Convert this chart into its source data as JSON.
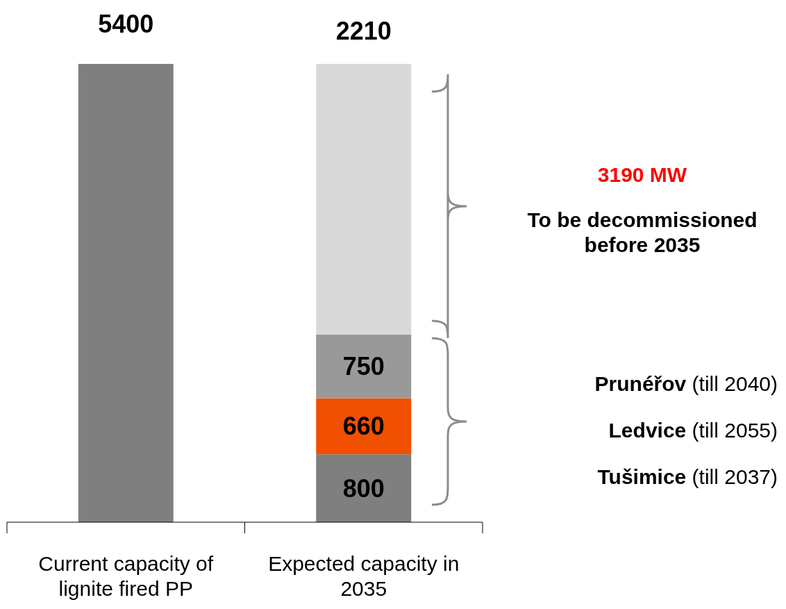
{
  "chart_data": {
    "type": "bar",
    "stacked": true,
    "categories": [
      "Current capacity of lignite fired PP",
      "Expected capacity in 2035"
    ],
    "ylim": [
      0,
      5400
    ],
    "tick_labels": "x",
    "series": [
      {
        "color": "#7f7f7f",
        "values": [
          5400,
          800
        ],
        "value_labels": [
          null,
          "800"
        ]
      },
      {
        "color": "#f05000",
        "values": [
          null,
          660
        ],
        "value_labels": [
          null,
          "660"
        ]
      },
      {
        "color": "#999999",
        "values": [
          null,
          750
        ],
        "value_labels": [
          null,
          "750"
        ]
      },
      {
        "color": "#d9d9d9",
        "values": [
          null,
          3190
        ],
        "value_labels": [
          null,
          null
        ]
      }
    ],
    "totals": [
      "5400",
      null
    ],
    "annotations": [
      "2210",
      "3190 MW",
      "To be decommissioned before 2035",
      "Prunéřov (till 2040)",
      "Ledvice (till 2055)",
      "Tušimice (till 2037)"
    ]
  }
}
